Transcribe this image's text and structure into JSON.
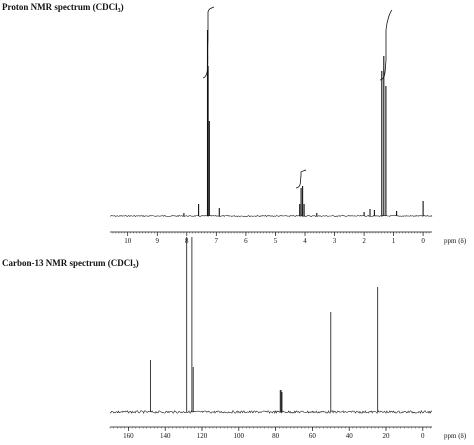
{
  "chart_data": [
    {
      "type": "line",
      "title_main": "Proton NMR spectrum (CDCl",
      "title_sub": "3",
      "title_end": ")",
      "xlabel": "ppm (δ)",
      "xlim": [
        10.6,
        -0.3
      ],
      "ticks": [
        10,
        9,
        8,
        7,
        6,
        5,
        4,
        3,
        2,
        1,
        0
      ],
      "peaks": [
        {
          "x": 8.1,
          "h": 3
        },
        {
          "x": 7.6,
          "h": 12
        },
        {
          "x": 7.3,
          "h": 186
        },
        {
          "x": 7.28,
          "h": 150
        },
        {
          "x": 7.24,
          "h": 95
        },
        {
          "x": 6.9,
          "h": 8
        },
        {
          "x": 4.18,
          "h": 12
        },
        {
          "x": 4.13,
          "h": 28
        },
        {
          "x": 4.08,
          "h": 30
        },
        {
          "x": 4.03,
          "h": 12
        },
        {
          "x": 3.6,
          "h": 3
        },
        {
          "x": 2.0,
          "h": 4
        },
        {
          "x": 1.8,
          "h": 7
        },
        {
          "x": 1.65,
          "h": 6
        },
        {
          "x": 1.4,
          "h": 145
        },
        {
          "x": 1.33,
          "h": 160
        },
        {
          "x": 1.26,
          "h": 130
        },
        {
          "x": 0.9,
          "h": 5
        },
        {
          "x": 0.0,
          "h": 15
        }
      ]
    },
    {
      "type": "line",
      "title_main": "Carbon-13 NMR spectrum (CDCl",
      "title_sub": "3",
      "title_end": ")",
      "xlabel": "ppm (δ)",
      "xlim": [
        170,
        -5
      ],
      "ticks": [
        160,
        140,
        120,
        100,
        80,
        60,
        40,
        20,
        0
      ],
      "peaks": [
        {
          "x": 148.0,
          "h": 52
        },
        {
          "x": 128.3,
          "h": 175
        },
        {
          "x": 125.5,
          "h": 175
        },
        {
          "x": 124.8,
          "h": 45
        },
        {
          "x": 77.5,
          "h": 22
        },
        {
          "x": 77.0,
          "h": 22
        },
        {
          "x": 76.5,
          "h": 20
        },
        {
          "x": 50.0,
          "h": 100
        },
        {
          "x": 24.5,
          "h": 125
        }
      ]
    }
  ]
}
